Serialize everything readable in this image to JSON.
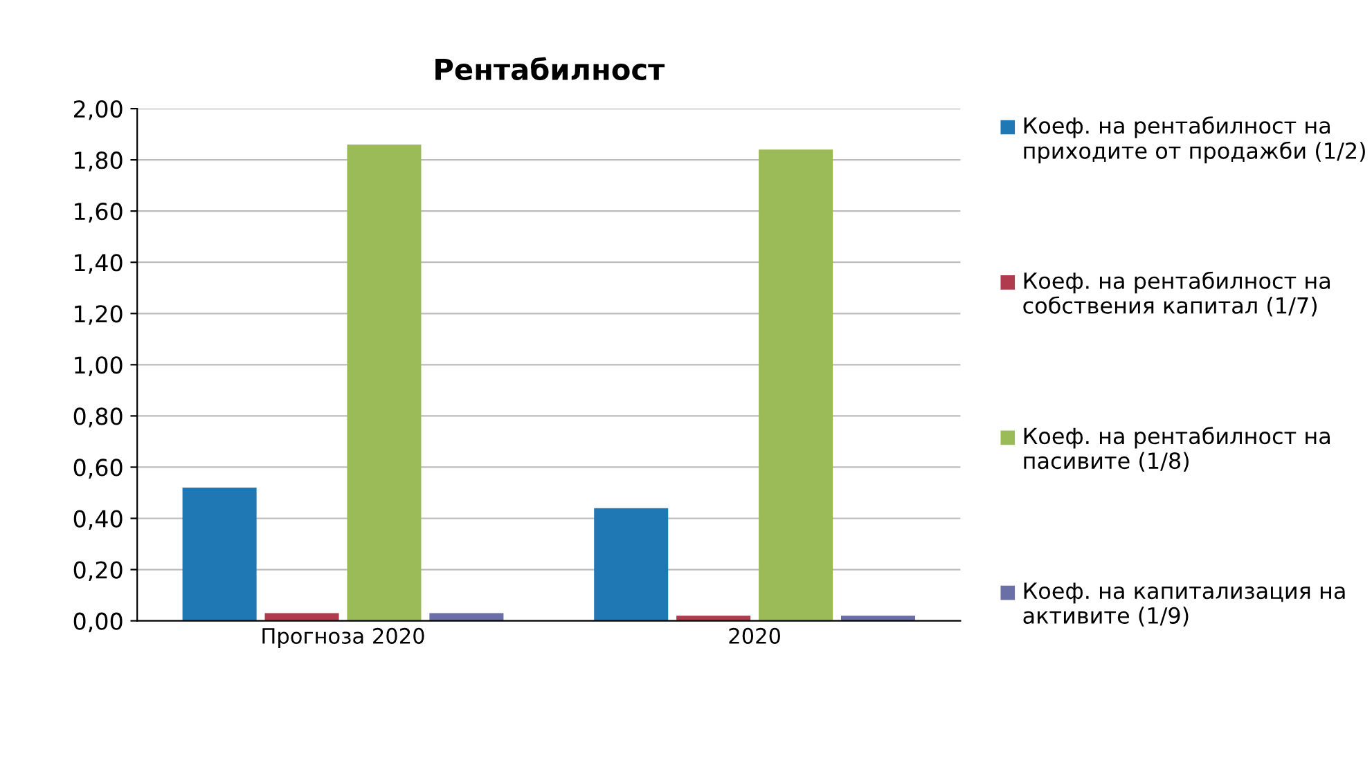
{
  "chart_data": {
    "type": "bar",
    "title": "Рентабилност",
    "categories": [
      "Прогноза 2020",
      "2020"
    ],
    "series": [
      {
        "name": "Коеф. на рентабилност на приходите от продажби (1/2)",
        "color": "#1f77b4",
        "values": [
          0.52,
          0.44
        ]
      },
      {
        "name": "Коеф. на рентабилност на собствения капитал (1/7)",
        "color": "#b03a4e",
        "values": [
          0.03,
          0.02
        ]
      },
      {
        "name": "Коеф. на рентабилност на пасивите (1/8)",
        "color": "#9bbb59",
        "values": [
          1.86,
          1.84
        ]
      },
      {
        "name": "Коеф. на капитализация на активите (1/9)",
        "color": "#6b6fa8",
        "values": [
          0.03,
          0.02
        ]
      }
    ],
    "ylim": [
      0,
      2
    ],
    "yticks": [
      {
        "value": 0,
        "label": "0,00"
      },
      {
        "value": 0.2,
        "label": "0,20"
      },
      {
        "value": 0.4,
        "label": "0,40"
      },
      {
        "value": 0.6,
        "label": "0,60"
      },
      {
        "value": 0.8,
        "label": "0,80"
      },
      {
        "value": 1,
        "label": "1,00"
      },
      {
        "value": 1.2,
        "label": "1,20"
      },
      {
        "value": 1.4,
        "label": "1,40"
      },
      {
        "value": 1.6,
        "label": "1,60"
      },
      {
        "value": 1.8,
        "label": "1,80"
      },
      {
        "value": 2,
        "label": "2,00"
      }
    ],
    "grid": "y",
    "legend": "right"
  }
}
